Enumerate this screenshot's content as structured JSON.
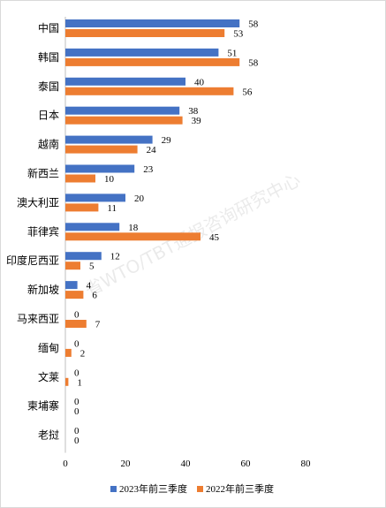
{
  "chart_data": {
    "type": "bar",
    "orientation": "horizontal",
    "categories": [
      "中国",
      "韩国",
      "泰国",
      "日本",
      "越南",
      "新西兰",
      "澳大利亚",
      "菲律宾",
      "印度尼西亚",
      "新加坡",
      "马来西亚",
      "缅甸",
      "文莱",
      "柬埔寨",
      "老挝"
    ],
    "series": [
      {
        "name": "2023年前三季度",
        "color": "#4472C4",
        "values": [
          58,
          51,
          40,
          38,
          29,
          23,
          20,
          18,
          12,
          4,
          0,
          0,
          0,
          0,
          0
        ]
      },
      {
        "name": "2022年前三季度",
        "color": "#ED7D31",
        "values": [
          53,
          58,
          56,
          39,
          24,
          10,
          11,
          45,
          5,
          6,
          7,
          2,
          1,
          0,
          0
        ]
      }
    ],
    "xlim": [
      0,
      80
    ],
    "xticks": [
      0,
      20,
      40,
      60,
      80
    ],
    "grid": false,
    "legend": "bottom"
  },
  "watermark": "省WTO/TBT通报咨询研究中心"
}
